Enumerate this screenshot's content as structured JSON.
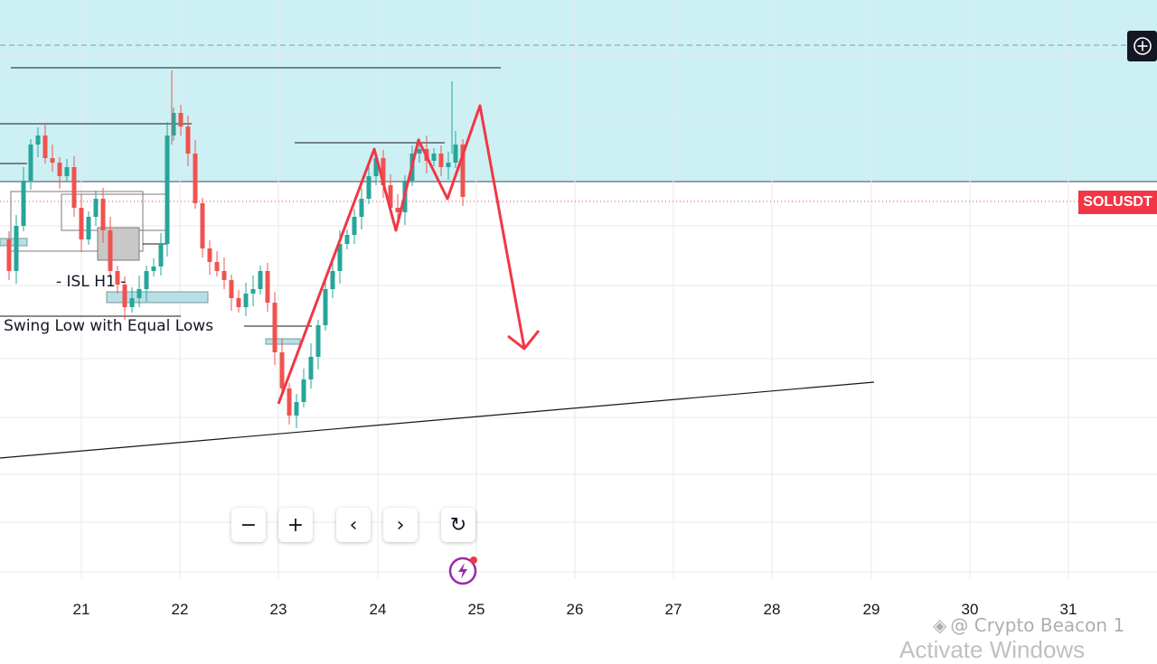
{
  "symbol": "SOLUSDT",
  "annotations": {
    "isl": "- ISL H1 -",
    "swing_low": "l Swing Low with Equal Lows"
  },
  "x_axis": {
    "ticks": [
      "21",
      "22",
      "23",
      "24",
      "25",
      "26",
      "27",
      "28",
      "29",
      "30",
      "31"
    ]
  },
  "nav": {
    "zoom_out": "−",
    "zoom_in": "+",
    "scroll_left": "‹",
    "scroll_right": "›",
    "reset": "↻"
  },
  "watermark": "@ Crypto Beacon 1",
  "os_overlay": "Activate Windows",
  "colors": {
    "supply_zone": "#cdf0f4",
    "candle_up": "#26a69a",
    "candle_down": "#ef5350",
    "projection": "#f23645",
    "symbol_badge": "#f23645",
    "grid": "#e8e8e8"
  },
  "icons": {
    "crosshair": "plus-circle-icon",
    "lightning": "lightning-icon",
    "reset": "reset-icon"
  }
}
